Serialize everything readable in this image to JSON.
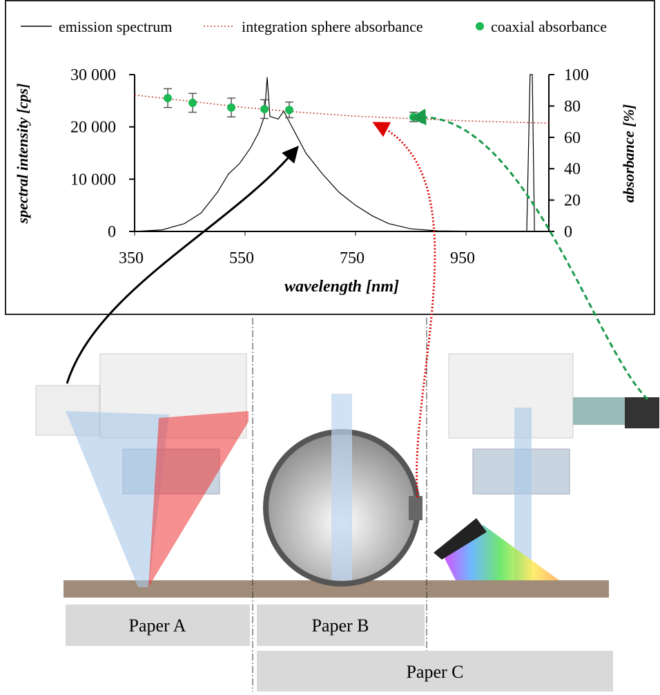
{
  "chart_data": {
    "type": "line",
    "xlabel": "wavelength [nm]",
    "ylabel": "spectral intensity  [cps]",
    "y2label": "absorbance [%]",
    "xlim": [
      350,
      1100
    ],
    "xticks": [
      350,
      550,
      750,
      950
    ],
    "ylim": [
      0,
      30000
    ],
    "yticks": [
      0,
      {
        "value": 10000,
        "label": "10 000"
      },
      {
        "value": 20000,
        "label": "20 000"
      },
      {
        "value": 30000,
        "label": "30 000"
      }
    ],
    "y2lim": [
      0,
      100
    ],
    "y2ticks": [
      0,
      20,
      40,
      60,
      80,
      100
    ],
    "series": [
      {
        "name": "emission spectrum",
        "color": "#000000",
        "style": "solid",
        "x": [
          350,
          400,
          440,
          470,
          500,
          520,
          540,
          560,
          575,
          585,
          590,
          595,
          610,
          620,
          630,
          645,
          660,
          690,
          720,
          750,
          780,
          810,
          850,
          900,
          1000,
          1060,
          1066,
          1070,
          1074,
          1100
        ],
        "values": [
          0,
          300,
          1500,
          3500,
          7500,
          11000,
          13000,
          16000,
          19000,
          22000,
          29500,
          22000,
          21500,
          23000,
          21000,
          18000,
          15000,
          11000,
          7500,
          5000,
          3000,
          1500,
          500,
          100,
          0,
          0,
          30000,
          30000,
          0,
          0
        ]
      },
      {
        "name": "integration sphere absorbance",
        "color": "#c0392b",
        "style": "dotted",
        "axis": "y2",
        "x": [
          350,
          450,
          550,
          650,
          750,
          850,
          950,
          1050,
          1100
        ],
        "values": [
          87,
          83,
          79,
          76,
          73.5,
          72,
          70.5,
          69.5,
          69
        ]
      },
      {
        "name": "coaxial absorbance",
        "color": "#1db954",
        "style": "points",
        "axis": "y2",
        "x": [
          410,
          455,
          525,
          585,
          630,
          855
        ],
        "values": [
          85,
          82,
          79,
          78,
          77.5,
          73
        ],
        "errors": [
          6,
          6,
          6,
          6,
          5,
          3
        ]
      }
    ]
  },
  "diagram": {
    "labels": [
      "Paper A",
      "Paper B",
      "Paper C"
    ]
  }
}
